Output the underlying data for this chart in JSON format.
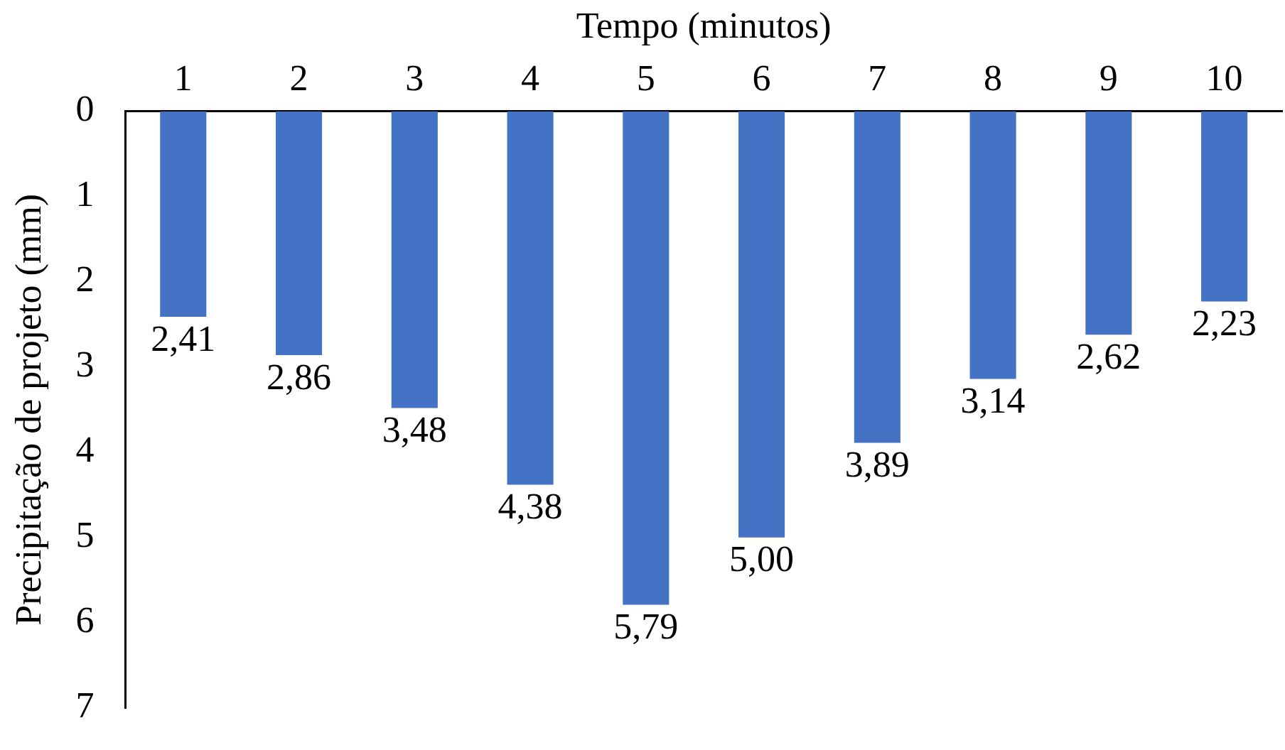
{
  "chart_data": {
    "type": "bar",
    "xlabel": "Tempo (minutos)",
    "ylabel": "Precipitação de projeto (mm)",
    "categories": [
      "1",
      "2",
      "3",
      "4",
      "5",
      "6",
      "7",
      "8",
      "9",
      "10"
    ],
    "values": [
      2.41,
      2.86,
      3.48,
      4.38,
      5.79,
      5.0,
      3.89,
      3.14,
      2.62,
      2.23
    ],
    "value_labels": [
      "2,41",
      "2,86",
      "3,48",
      "4,38",
      "5,79",
      "5,00",
      "3,89",
      "3,14",
      "2,62",
      "2,23"
    ],
    "color": "#4472c4",
    "ylim": [
      7,
      0
    ],
    "yticks": [
      0,
      1,
      2,
      3,
      4,
      5,
      6,
      7
    ]
  }
}
